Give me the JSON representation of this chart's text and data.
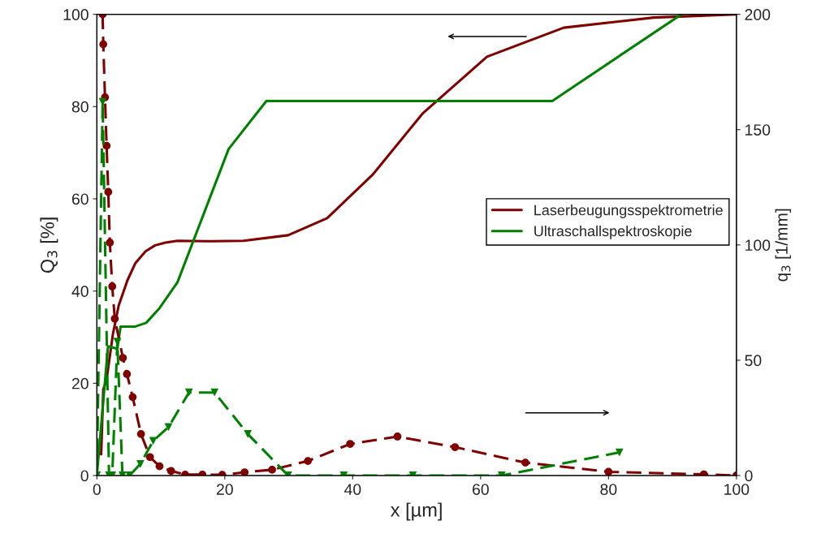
{
  "chart_data": {
    "type": "line",
    "xlabel": "x [µm]",
    "ylabel": "Q$_{3}$ [%]",
    "y2label": "q$_{3}$ [1/mm]",
    "xlim": [
      0,
      100
    ],
    "xticks": [
      0,
      20,
      40,
      60,
      80,
      100
    ],
    "ylim": [
      0,
      100
    ],
    "yticks": [
      0,
      20,
      40,
      60,
      80,
      100
    ],
    "y2lim": [
      0,
      200
    ],
    "y2ticks": [
      0,
      50,
      100,
      150,
      200
    ],
    "grid": false,
    "legend": "right",
    "series": [
      {
        "name": "Laserbeugungsspektrometrie",
        "color": "#800000",
        "line_style": "solid",
        "marker": "none",
        "x": [
          0.67,
          1.0,
          1.5,
          2.5,
          3.4,
          4.8,
          6.0,
          7.6,
          9.1,
          10.7,
          12.6,
          18,
          22.9,
          29.9,
          36.0,
          43.1,
          51.0,
          61.0,
          73.0,
          87.1,
          100
        ],
        "values": [
          4.6,
          18.7,
          20.6,
          30.6,
          36.8,
          42.4,
          46,
          48.6,
          49.9,
          50.5,
          50.9,
          50.8,
          50.9,
          52.1,
          55.8,
          65.2,
          78.6,
          90.8,
          97.1,
          99.3,
          100
        ]
      },
      {
        "name": "Ultraschallspektroskopie",
        "color": "#008000",
        "line_style": "solid",
        "marker": "none",
        "x": [
          0,
          1.74,
          3.2,
          3.7,
          6.0,
          7.7,
          9.8,
          12.6,
          20.6,
          26.5,
          71.2,
          91.4
        ],
        "values": [
          0,
          28.0,
          27.5,
          32.3,
          32.3,
          33.1,
          36.3,
          41.9,
          70.8,
          81.2,
          81.2,
          100
        ]
      },
      {
        "color": "#800000",
        "axis": "y2",
        "line_style": "dashed",
        "marker": "circle",
        "x": [
          0.9,
          1.0,
          1.27,
          1.52,
          1.78,
          2.03,
          2.4,
          2.8,
          4.07,
          4.7,
          5.6,
          6.9,
          8.3,
          9.8,
          11.6,
          13.8,
          16.5,
          19.6,
          23.1,
          27.4,
          33.0,
          39.6,
          47.0,
          56.0,
          67.0,
          80.0,
          94.9,
          100
        ],
        "values": [
          200,
          187,
          164,
          143,
          123,
          101,
          82,
          68,
          51,
          44,
          34,
          18,
          8,
          4,
          2,
          0.4,
          0.4,
          0.3,
          1.4,
          2.5,
          6.3,
          13.7,
          16.9,
          12.3,
          5.6,
          1.6,
          0.5,
          0
        ]
      },
      {
        "color": "#008000",
        "axis": "y2",
        "line_style": "dashed",
        "marker": "triangle",
        "x": [
          0,
          0.9,
          1.9,
          2.4,
          3.2,
          4.0,
          5.1,
          6.8,
          8.8,
          11.2,
          14.4,
          18.4,
          23.6,
          29.9,
          38.6,
          49.4,
          63.3,
          81.7
        ],
        "values": [
          0,
          162,
          0,
          0,
          58,
          0,
          0,
          5,
          15,
          21,
          36,
          36,
          18,
          0,
          0,
          0,
          0,
          10
        ]
      }
    ]
  }
}
